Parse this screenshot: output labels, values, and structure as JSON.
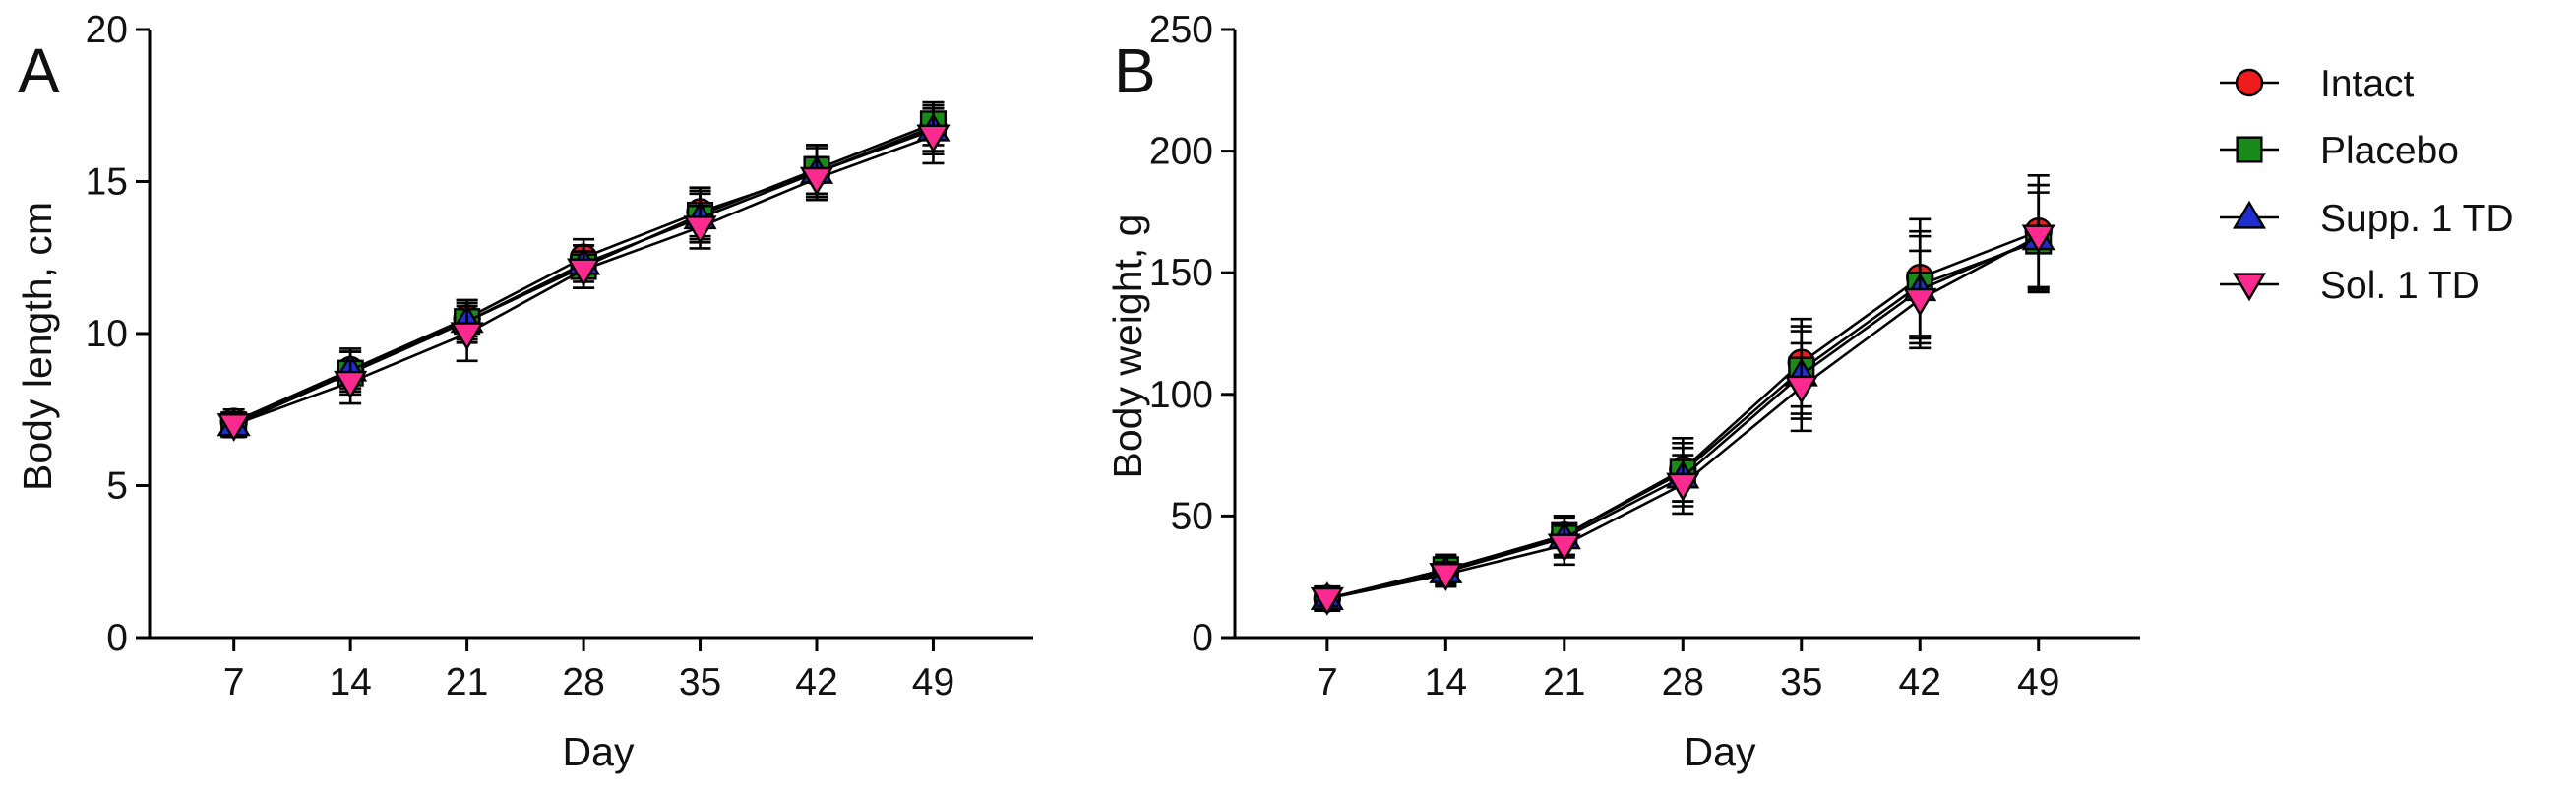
{
  "legend": [
    {
      "name": "Intact",
      "marker": "circle",
      "color": "#ee1c1c"
    },
    {
      "name": "Placebo",
      "marker": "square",
      "color": "#1a8a1a"
    },
    {
      "name": "Supp. 1 TD",
      "marker": "triangle-up",
      "color": "#1f2fcf"
    },
    {
      "name": "Sol. 1 TD",
      "marker": "triangle-down",
      "color": "#ff2a90"
    }
  ],
  "chart_data": [
    {
      "panel": "A",
      "type": "line",
      "title": "",
      "xlabel": "Day",
      "ylabel": "Body length, cm",
      "x": [
        7,
        14,
        21,
        28,
        35,
        42,
        49
      ],
      "xlim": [
        3,
        55
      ],
      "ylim": [
        0,
        20
      ],
      "yticks": [
        0,
        5,
        10,
        15,
        20
      ],
      "series": [
        {
          "name": "Intact",
          "values": [
            7.1,
            8.8,
            10.5,
            12.5,
            14.0,
            15.3,
            16.8
          ],
          "errors": [
            0.4,
            0.6,
            0.6,
            0.6,
            0.8,
            0.8,
            0.8
          ]
        },
        {
          "name": "Placebo",
          "values": [
            7.0,
            8.7,
            10.4,
            12.2,
            13.9,
            15.4,
            16.9
          ],
          "errors": [
            0.4,
            0.7,
            0.6,
            0.7,
            0.8,
            0.8,
            0.7
          ]
        },
        {
          "name": "Supp. 1 TD",
          "values": [
            7.0,
            8.8,
            10.4,
            12.3,
            13.8,
            15.3,
            16.7
          ],
          "errors": [
            0.4,
            0.7,
            0.7,
            0.6,
            0.8,
            0.9,
            0.8
          ]
        },
        {
          "name": "Sol. 1 TD",
          "values": [
            7.0,
            8.4,
            10.0,
            12.1,
            13.5,
            15.1,
            16.5
          ],
          "errors": [
            0.4,
            0.7,
            0.9,
            0.6,
            0.7,
            0.7,
            0.9
          ]
        }
      ]
    },
    {
      "panel": "B",
      "type": "line",
      "title": "",
      "xlabel": "Day",
      "ylabel": "Body weight, g",
      "x": [
        7,
        14,
        21,
        28,
        35,
        42,
        49
      ],
      "xlim": [
        3,
        55
      ],
      "ylim": [
        0,
        250
      ],
      "yticks": [
        0,
        50,
        100,
        150,
        200,
        250
      ],
      "series": [
        {
          "name": "Intact",
          "values": [
            16,
            28,
            42,
            69,
            113,
            148,
            167
          ],
          "errors": [
            3,
            6,
            8,
            13,
            18,
            24,
            23
          ]
        },
        {
          "name": "Placebo",
          "values": [
            16,
            28,
            42,
            68,
            110,
            145,
            163
          ],
          "errors": [
            3,
            6,
            8,
            12,
            18,
            22,
            20
          ]
        },
        {
          "name": "Supp. 1 TD",
          "values": [
            16,
            27,
            41,
            66,
            108,
            143,
            164
          ],
          "errors": [
            3,
            6,
            8,
            12,
            18,
            22,
            22
          ]
        },
        {
          "name": "Sol. 1 TD",
          "values": [
            16,
            26,
            38,
            63,
            103,
            139,
            165
          ],
          "errors": [
            3,
            5,
            8,
            12,
            18,
            20,
            21
          ]
        }
      ]
    }
  ]
}
